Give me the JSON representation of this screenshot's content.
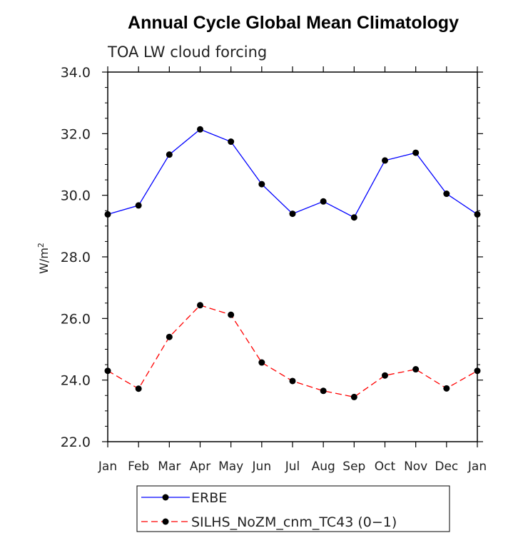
{
  "chart_data": {
    "type": "line",
    "title": "Annual Cycle Global Mean Climatology",
    "subtitle": "TOA LW cloud forcing",
    "ylabel_base": "W/m",
    "ylabel_sup": "2",
    "xlabel": "",
    "categories": [
      "Jan",
      "Feb",
      "Mar",
      "Apr",
      "May",
      "Jun",
      "Jul",
      "Aug",
      "Sep",
      "Oct",
      "Nov",
      "Dec",
      "Jan"
    ],
    "ylim": [
      22.0,
      34.0
    ],
    "yticks": [
      "22.0",
      "24.0",
      "26.0",
      "28.0",
      "30.0",
      "32.0",
      "34.0"
    ],
    "grid": false,
    "legend_position": "bottom",
    "series": [
      {
        "name": "ERBE",
        "color": "#0000ff",
        "dash": "solid",
        "values": [
          29.38,
          29.67,
          31.32,
          32.14,
          31.74,
          30.36,
          29.4,
          29.8,
          29.28,
          31.13,
          31.38,
          30.05,
          29.38
        ]
      },
      {
        "name": "SILHS_NoZM_cnm_TC43 (0−1)",
        "color": "#ff0000",
        "dash": "dashed",
        "values": [
          24.3,
          23.72,
          25.4,
          26.43,
          26.12,
          24.57,
          23.97,
          23.65,
          23.45,
          24.15,
          24.35,
          23.73,
          24.3
        ]
      }
    ]
  }
}
